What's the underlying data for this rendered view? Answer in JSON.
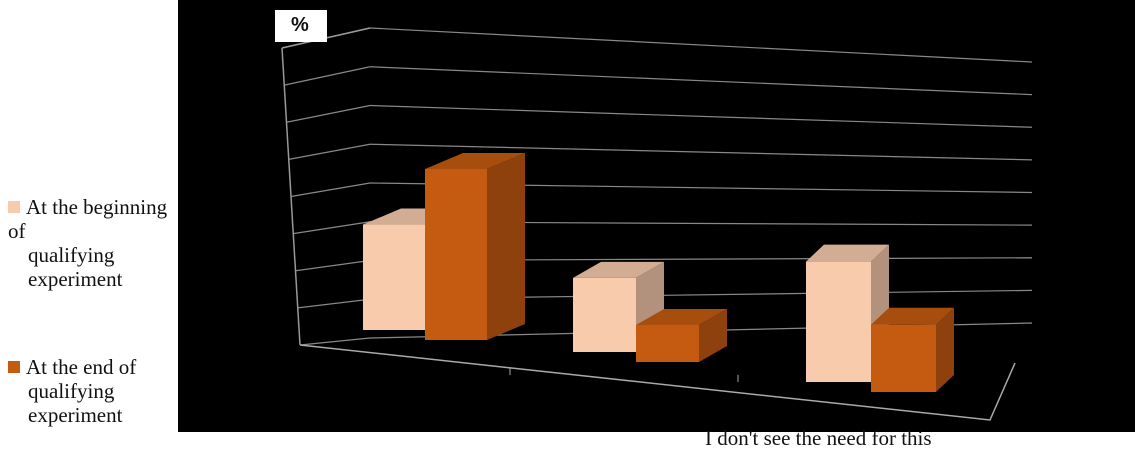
{
  "chart_data": {
    "type": "bar",
    "ylabel": "%",
    "xlabel": "I don't see the need for this",
    "categories": [
      "",
      "",
      "I don't see the need for this"
    ],
    "series": [
      {
        "name": "At the beginning of qualifying experiment",
        "values": [
          37,
          26,
          43
        ],
        "color": "#F8CBAD"
      },
      {
        "name": "At the end of qualifying experiment",
        "values": [
          60,
          13,
          24
        ],
        "color": "#C55A11"
      }
    ],
    "ylim": [
      0,
      70
    ],
    "grid": true,
    "legend": "left"
  },
  "legend": {
    "item1": {
      "line1": "At the beginning of",
      "line2": "qualifying",
      "line3": "experiment"
    },
    "item2": {
      "line1": "At the end of",
      "line2": "qualifying",
      "line3": "experiment"
    }
  }
}
